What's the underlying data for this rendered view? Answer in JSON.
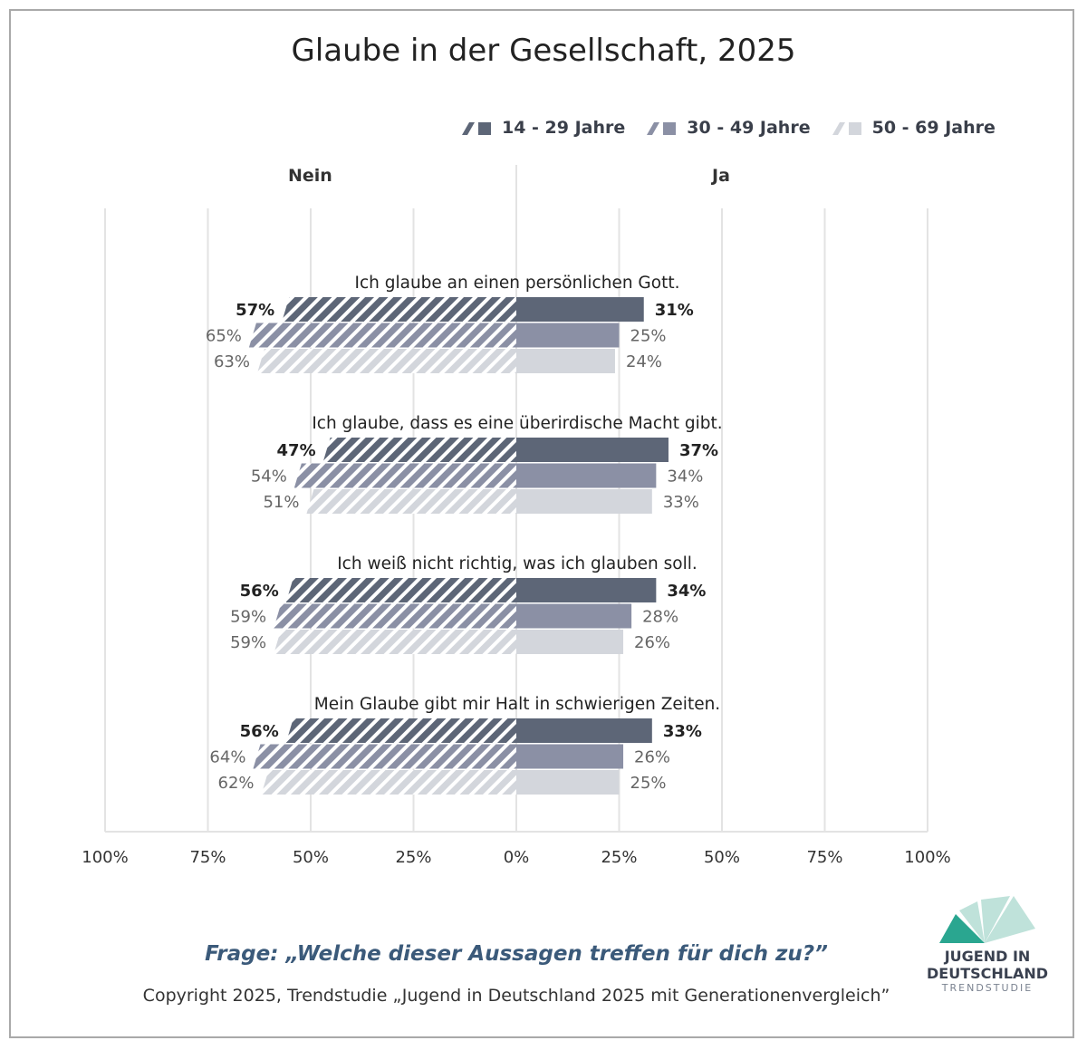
{
  "chart_data": {
    "type": "bar",
    "title": "Glaube in der Gesellschaft, 2025",
    "left_label": "Nein",
    "right_label": "Ja",
    "x_ticks": [
      "100%",
      "75%",
      "50%",
      "25%",
      "0%",
      "25%",
      "50%",
      "75%",
      "100%"
    ],
    "xlim": [
      -100,
      100
    ],
    "legend_position": "top-right",
    "series": [
      {
        "name": "14 - 29 Jahre",
        "color": "#5d6677"
      },
      {
        "name": "30 - 49 Jahre",
        "color": "#8b90a5"
      },
      {
        "name": "50 - 69 Jahre",
        "color": "#d3d6dc"
      }
    ],
    "categories": [
      "Ich glaube an einen persönlichen Gott.",
      "Ich glaube, dass es eine überirdische Macht gibt.",
      "Ich weiß nicht richtig, was ich glauben soll.",
      "Mein Glaube gibt mir Halt in schwierigen Zeiten."
    ],
    "nein": [
      [
        57,
        65,
        63
      ],
      [
        47,
        54,
        51
      ],
      [
        56,
        59,
        59
      ],
      [
        56,
        64,
        62
      ]
    ],
    "ja": [
      [
        31,
        25,
        24
      ],
      [
        37,
        34,
        33
      ],
      [
        34,
        28,
        26
      ],
      [
        33,
        26,
        25
      ]
    ],
    "grid": true
  },
  "footer": {
    "question": "Frage: „Welche dieser Aussagen treffen für dich zu?”",
    "copyright": "Copyright 2025, Trendstudie „Jugend in Deutschland 2025 mit Generationenvergleich”"
  },
  "logo": {
    "line1": "JUGEND IN",
    "line2": "DEUTSCHLAND",
    "line3": "TRENDSTUDIE"
  }
}
